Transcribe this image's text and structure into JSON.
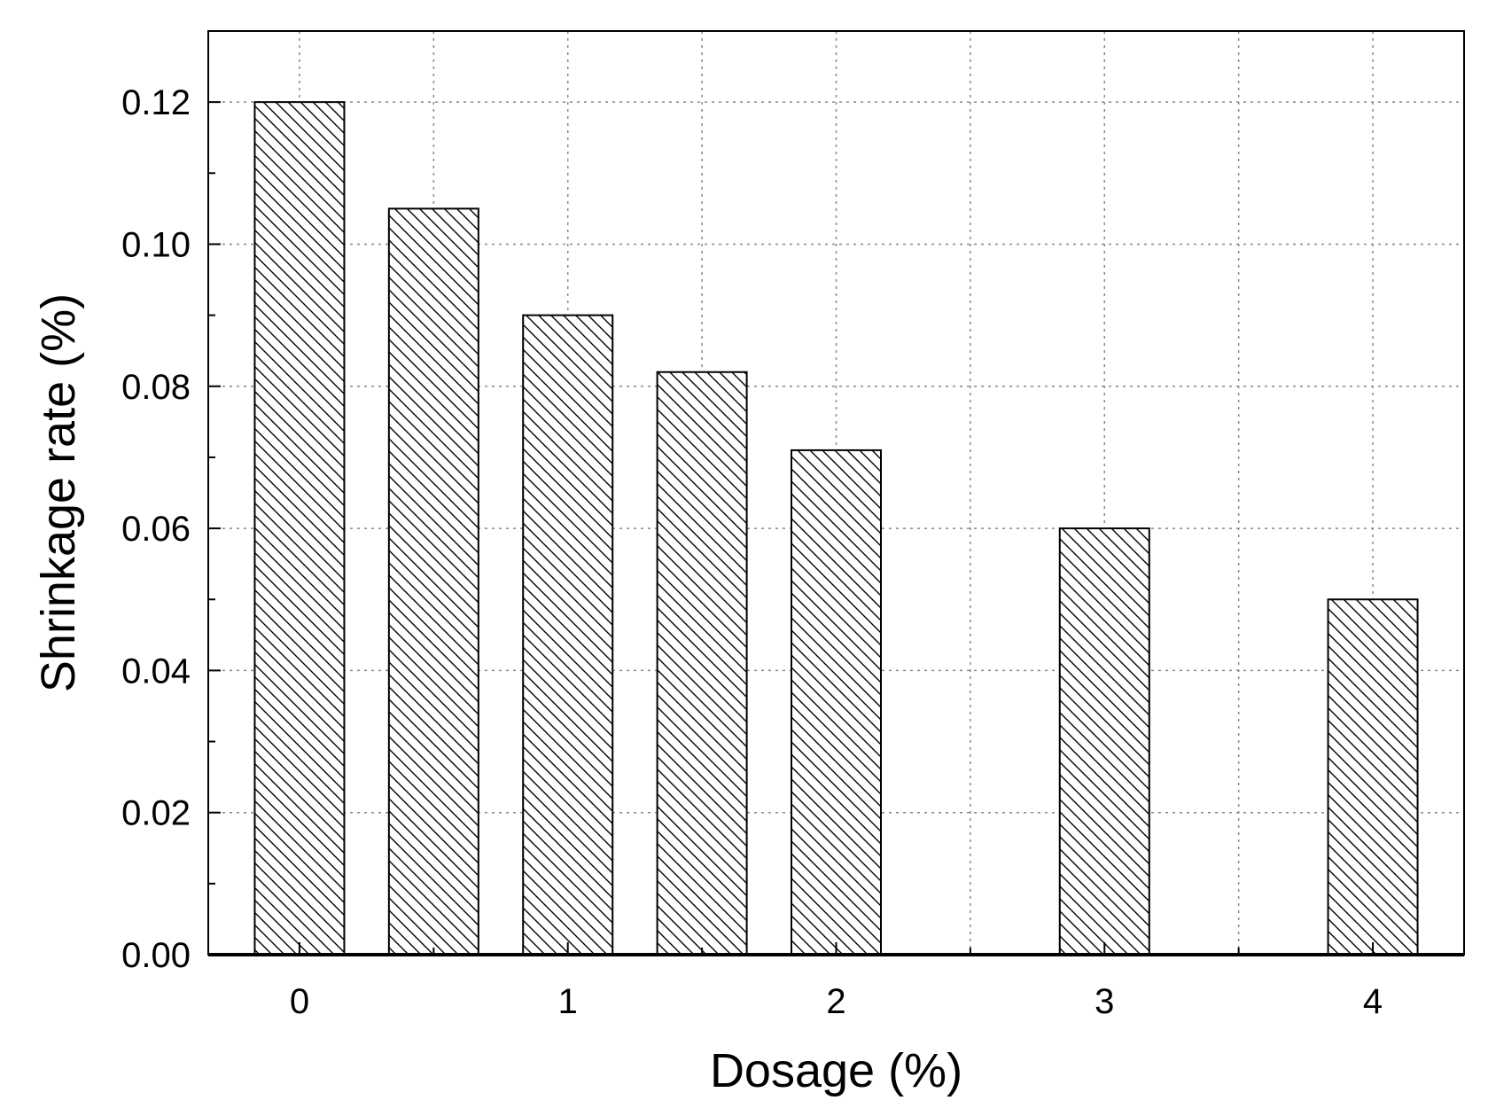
{
  "chart_data": {
    "type": "bar",
    "title": "",
    "xlabel": "Dosage (%)",
    "ylabel": "Shrinkage rate (%)",
    "x": [
      0,
      0.5,
      1,
      1.5,
      2,
      3,
      4
    ],
    "values": [
      0.12,
      0.105,
      0.09,
      0.082,
      0.071,
      0.06,
      0.05
    ],
    "xlim": [
      -0.34,
      4.34
    ],
    "ylim": [
      0,
      0.13
    ],
    "xticks": [
      0,
      1,
      2,
      3,
      4
    ],
    "yticks": [
      0.0,
      0.02,
      0.04,
      0.06,
      0.08,
      0.1,
      0.12
    ],
    "ytick_labels": [
      "0.00",
      "0.02",
      "0.04",
      "0.06",
      "0.08",
      "0.10",
      "0.12"
    ],
    "grid": true,
    "bar_fill": "hatched",
    "colors": {
      "bar_stroke": "#000000",
      "hatch": "#000000",
      "grid": "#888888"
    }
  }
}
